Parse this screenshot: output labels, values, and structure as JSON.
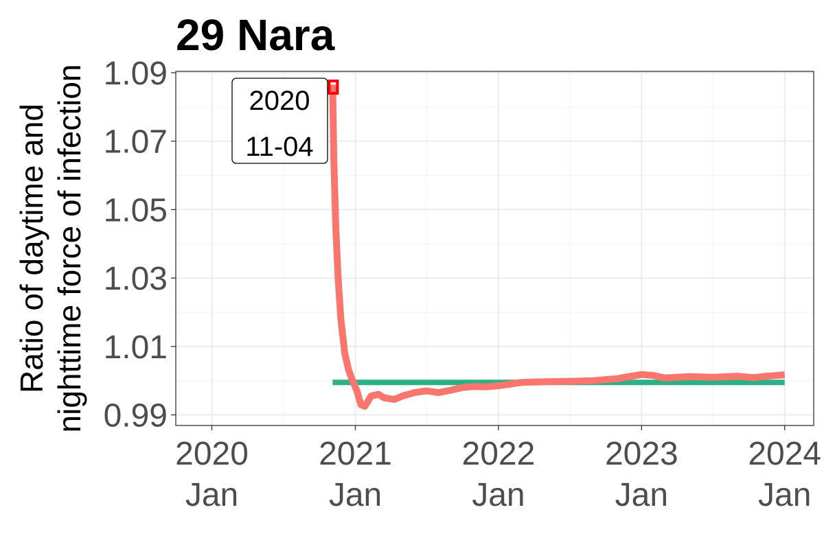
{
  "chart_data": {
    "type": "line",
    "title": "29 Nara",
    "ylabel_lines": [
      "Ratio of daytime and",
      "nighttime force of infection"
    ],
    "xlabel": "",
    "x_ticks": [
      {
        "date": "2020-01-01",
        "line1": "2020",
        "line2": "Jan"
      },
      {
        "date": "2021-01-01",
        "line1": "2021",
        "line2": "Jan"
      },
      {
        "date": "2022-01-01",
        "line1": "2022",
        "line2": "Jan"
      },
      {
        "date": "2023-01-01",
        "line1": "2023",
        "line2": "Jan"
      },
      {
        "date": "2024-01-01",
        "line1": "2024",
        "line2": "Jan"
      }
    ],
    "y_ticks": [
      "0.99",
      "1.01",
      "1.03",
      "1.05",
      "1.07",
      "1.09"
    ],
    "xlim": [
      "2019-10-01",
      "2024-03-15"
    ],
    "ylim": [
      0.9869,
      1.0904
    ],
    "grid": true,
    "series": [
      {
        "color": "#F8766D",
        "points": [
          [
            "2020-11-04",
            1.0865
          ],
          [
            "2020-11-07",
            1.065
          ],
          [
            "2020-11-12",
            1.045
          ],
          [
            "2020-11-18",
            1.03
          ],
          [
            "2020-11-25",
            1.018
          ],
          [
            "2020-12-05",
            1.008
          ],
          [
            "2020-12-15",
            1.003
          ],
          [
            "2020-12-25",
            1.0
          ],
          [
            "2021-01-05",
            0.997
          ],
          [
            "2021-01-15",
            0.993
          ],
          [
            "2021-01-25",
            0.9925
          ],
          [
            "2021-02-10",
            0.9955
          ],
          [
            "2021-03-01",
            0.996
          ],
          [
            "2021-03-15",
            0.995
          ],
          [
            "2021-04-10",
            0.9945
          ],
          [
            "2021-05-01",
            0.9955
          ],
          [
            "2021-06-01",
            0.9965
          ],
          [
            "2021-07-01",
            0.997
          ],
          [
            "2021-08-01",
            0.9965
          ],
          [
            "2021-09-01",
            0.9972
          ],
          [
            "2021-10-01",
            0.998
          ],
          [
            "2021-11-01",
            0.9983
          ],
          [
            "2021-12-01",
            0.9982
          ],
          [
            "2022-01-01",
            0.9985
          ],
          [
            "2022-02-01",
            0.999
          ],
          [
            "2022-03-01",
            0.9995
          ],
          [
            "2022-05-01",
            0.9997
          ],
          [
            "2022-07-01",
            0.9998
          ],
          [
            "2022-09-01",
            1.0
          ],
          [
            "2022-11-01",
            1.0006
          ],
          [
            "2023-01-01",
            1.0018
          ],
          [
            "2023-02-01",
            1.0015
          ],
          [
            "2023-03-01",
            1.0008
          ],
          [
            "2023-05-01",
            1.0012
          ],
          [
            "2023-07-01",
            1.001
          ],
          [
            "2023-09-01",
            1.0013
          ],
          [
            "2023-10-15",
            1.0009
          ],
          [
            "2023-11-15",
            1.0013
          ],
          [
            "2024-01-01",
            1.0017
          ]
        ]
      },
      {
        "color": "#2EB086",
        "points": [
          [
            "2020-11-04",
            0.9995
          ],
          [
            "2024-01-01",
            0.9995
          ]
        ]
      }
    ],
    "marker": {
      "date": "2020-11-04",
      "value": 1.0858,
      "color": "#FF0000"
    },
    "annotation": {
      "line1": "2020",
      "line2": "11-04"
    }
  }
}
